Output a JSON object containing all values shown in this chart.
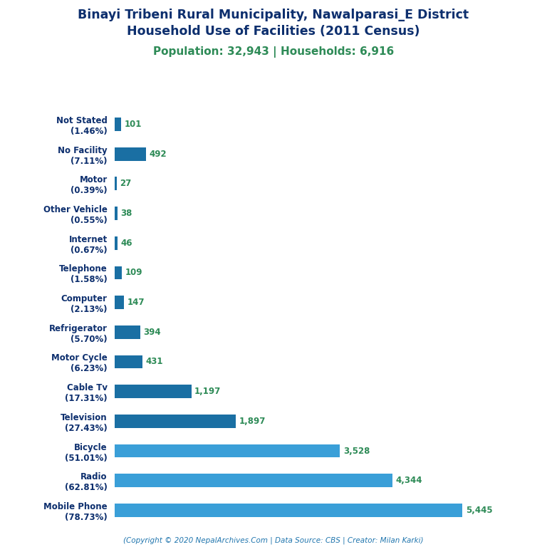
{
  "title_line1": "Binayi Tribeni Rural Municipality, Nawalparasi_E District",
  "title_line2": "Household Use of Facilities (2011 Census)",
  "subtitle": "Population: 32,943 | Households: 6,916",
  "footer": "(Copyright © 2020 NepalArchives.Com | Data Source: CBS | Creator: Milan Karki)",
  "categories": [
    "Not Stated\n(1.46%)",
    "No Facility\n(7.11%)",
    "Motor\n(0.39%)",
    "Other Vehicle\n(0.55%)",
    "Internet\n(0.67%)",
    "Telephone\n(1.58%)",
    "Computer\n(2.13%)",
    "Refrigerator\n(5.70%)",
    "Motor Cycle\n(6.23%)",
    "Cable Tv\n(17.31%)",
    "Television\n(27.43%)",
    "Bicycle\n(51.01%)",
    "Radio\n(62.81%)",
    "Mobile Phone\n(78.73%)"
  ],
  "values": [
    101,
    492,
    27,
    38,
    46,
    109,
    147,
    394,
    431,
    1197,
    1897,
    3528,
    4344,
    5445
  ],
  "bar_colors": [
    "#1a6fa3",
    "#1a6fa3",
    "#1a6fa3",
    "#1a6fa3",
    "#1a6fa3",
    "#1a6fa3",
    "#1a6fa3",
    "#1a6fa3",
    "#1a6fa3",
    "#1a6fa3",
    "#1a6fa3",
    "#3a9fd8",
    "#3a9fd8",
    "#3a9fd8"
  ],
  "value_color": "#2e8b57",
  "title_color": "#0d2f6e",
  "subtitle_color": "#2e8b57",
  "footer_color": "#2176ae",
  "label_color": "#0d2f6e",
  "bg_color": "#ffffff",
  "xlim": [
    0,
    6000
  ],
  "bar_height": 0.45,
  "figsize": [
    7.68,
    7.68
  ],
  "dpi": 100
}
